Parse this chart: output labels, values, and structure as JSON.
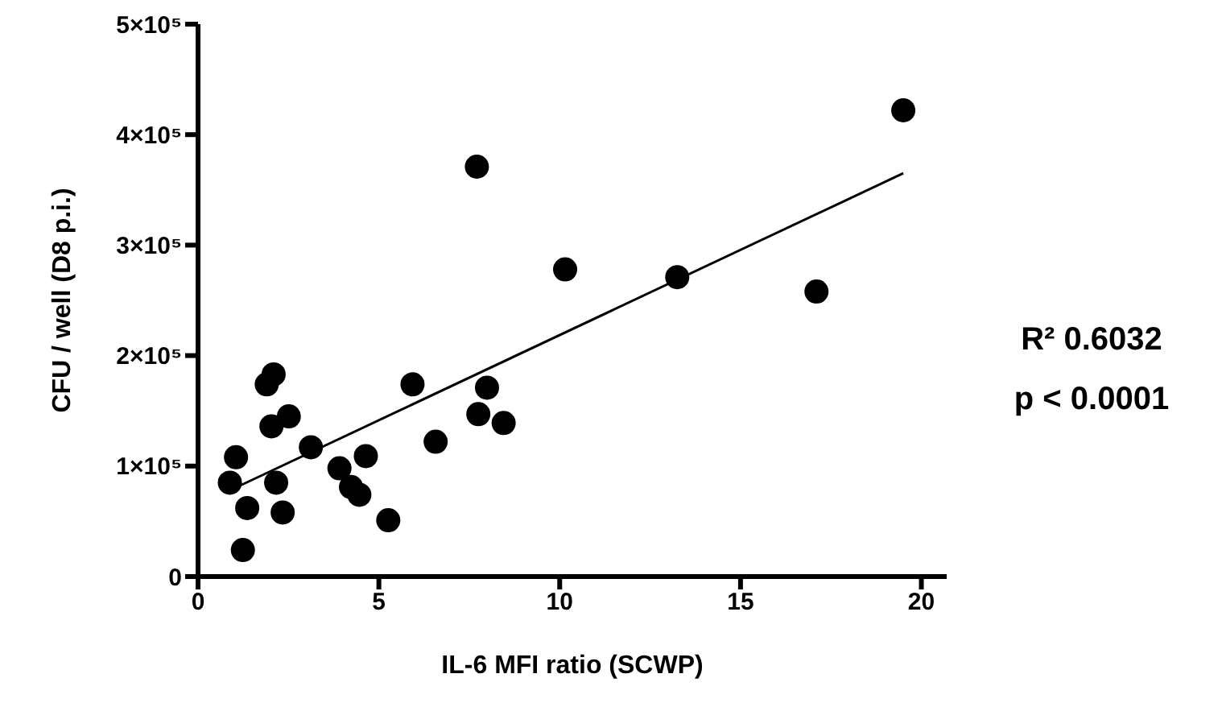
{
  "chart_data": {
    "type": "scatter",
    "xlabel": "IL-6 MFI ratio (SCWP)",
    "ylabel": "CFU / well (D8 p.i.)",
    "annotations": [
      "R² 0.6032",
      "p < 0.0001"
    ],
    "xlim": [
      0,
      20.7
    ],
    "xticks": [
      0,
      5,
      10,
      15,
      20
    ],
    "ylim": [
      0,
      500000
    ],
    "yticks": [
      0,
      {
        "value": 100000,
        "label": "1×10⁵"
      },
      {
        "value": 200000,
        "label": "2×10⁵"
      },
      {
        "value": 300000,
        "label": "3×10⁵"
      },
      {
        "value": 400000,
        "label": "4×10⁵"
      },
      {
        "value": 500000,
        "label": "5×10⁵"
      }
    ],
    "marker": "circle",
    "series": [
      {
        "color": "#000000",
        "x": [
          0.88,
          1.05,
          1.36,
          1.24,
          1.9,
          2.09,
          2.03,
          2.51,
          2.16,
          2.34,
          3.12,
          3.91,
          4.23,
          4.46,
          4.64,
          5.26,
          5.93,
          6.57,
          7.75,
          7.99,
          8.45,
          10.15,
          7.71,
          13.25,
          17.1,
          19.5
        ],
        "values": [
          85000,
          108000,
          62000,
          24000,
          174000,
          183000,
          136000,
          145000,
          85000,
          58000,
          117000,
          98000,
          81000,
          74000,
          109000,
          51000,
          174000,
          122000,
          147000,
          171000,
          139000,
          278000,
          371000,
          271000,
          258000,
          422000
        ]
      },
      {
        "type": "line",
        "color": "#000000",
        "marker": "none",
        "x": [
          0.88,
          19.5
        ],
        "values": [
          78000,
          365000
        ]
      }
    ]
  }
}
